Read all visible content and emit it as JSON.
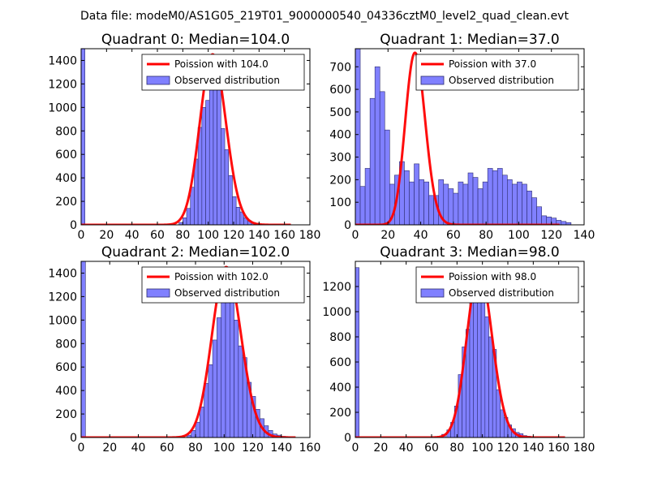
{
  "suptitle": "Data file: modeM0/AS1G05_219T01_9000000540_04336cztM0_level2_quad_clean.evt",
  "colors": {
    "bar_fill": "#8080ff",
    "bar_edge": "#2c2c6e",
    "curve": "#ff0000",
    "axes": "#000000",
    "background": "#ffffff"
  },
  "chart_data": [
    {
      "type": "bar",
      "title": "Quadrant 0: Median=104.0",
      "xlim": [
        0,
        180
      ],
      "ylim": [
        0,
        1500
      ],
      "xticks": [
        0,
        20,
        40,
        60,
        80,
        100,
        120,
        140,
        160,
        180
      ],
      "yticks": [
        0,
        200,
        400,
        600,
        800,
        1000,
        1200,
        1400
      ],
      "legend": {
        "position": "top-right",
        "curve_label": "Poission with 104.0",
        "bars_label": "Observed distribution"
      },
      "bin_width": 3,
      "bins_start": [
        0,
        77,
        80,
        83,
        86,
        89,
        92,
        95,
        98,
        101,
        104,
        107,
        110,
        113,
        116,
        119,
        122,
        125,
        128,
        131,
        134,
        137,
        140
      ],
      "counts": [
        1500,
        20,
        60,
        140,
        320,
        560,
        830,
        1000,
        1060,
        1240,
        1380,
        1150,
        820,
        640,
        420,
        240,
        150,
        110,
        60,
        35,
        20,
        10,
        5
      ],
      "poisson": {
        "mean": 104.0,
        "peak": 1450,
        "x_range": [
          0,
          165
        ]
      }
    },
    {
      "type": "bar",
      "title": "Quadrant 1: Median=37.0",
      "xlim": [
        0,
        140
      ],
      "ylim": [
        0,
        780
      ],
      "xticks": [
        0,
        20,
        40,
        60,
        80,
        100,
        120,
        140
      ],
      "yticks": [
        0,
        100,
        200,
        300,
        400,
        500,
        600,
        700
      ],
      "legend": {
        "position": "top-right",
        "curve_label": "Poission with 37.0",
        "bars_label": "Observed distribution"
      },
      "bin_width": 3,
      "bins_start": [
        0,
        3,
        6,
        9,
        12,
        15,
        18,
        21,
        24,
        27,
        30,
        33,
        36,
        39,
        42,
        45,
        48,
        51,
        54,
        57,
        60,
        63,
        66,
        69,
        72,
        75,
        78,
        81,
        84,
        87,
        90,
        93,
        96,
        99,
        102,
        105,
        108,
        111,
        114,
        117,
        120,
        123,
        126,
        129
      ],
      "counts": [
        780,
        170,
        250,
        560,
        700,
        590,
        420,
        180,
        220,
        280,
        240,
        190,
        270,
        200,
        190,
        130,
        130,
        200,
        180,
        160,
        140,
        190,
        180,
        230,
        210,
        160,
        190,
        250,
        240,
        250,
        220,
        200,
        180,
        190,
        180,
        150,
        120,
        80,
        40,
        35,
        30,
        20,
        15,
        10
      ],
      "poisson": {
        "mean": 37.0,
        "peak": 760,
        "x_range": [
          0,
          125
        ]
      }
    },
    {
      "type": "bar",
      "title": "Quadrant 2: Median=102.0",
      "xlim": [
        0,
        160
      ],
      "ylim": [
        0,
        1500
      ],
      "xticks": [
        0,
        20,
        40,
        60,
        80,
        100,
        120,
        140,
        160
      ],
      "yticks": [
        0,
        200,
        400,
        600,
        800,
        1000,
        1200,
        1400
      ],
      "legend": {
        "position": "top-right",
        "curve_label": "Poission with 102.0",
        "bars_label": "Observed distribution"
      },
      "bin_width": 3,
      "bins_start": [
        0,
        74,
        77,
        80,
        83,
        86,
        89,
        92,
        95,
        98,
        101,
        104,
        107,
        110,
        113,
        116,
        119,
        122,
        125,
        128,
        131,
        134,
        137,
        140,
        143
      ],
      "counts": [
        1500,
        20,
        60,
        130,
        260,
        460,
        620,
        830,
        1020,
        1200,
        1260,
        1290,
        1000,
        780,
        680,
        470,
        350,
        240,
        160,
        100,
        60,
        30,
        20,
        10,
        5
      ],
      "poisson": {
        "mean": 102.0,
        "peak": 1450,
        "x_range": [
          0,
          150
        ]
      }
    },
    {
      "type": "bar",
      "title": "Quadrant 3: Median=98.0",
      "xlim": [
        0,
        180
      ],
      "ylim": [
        0,
        1400
      ],
      "xticks": [
        0,
        20,
        40,
        60,
        80,
        100,
        120,
        140,
        160,
        180
      ],
      "yticks": [
        0,
        200,
        400,
        600,
        800,
        1000,
        1200
      ],
      "legend": {
        "position": "top-right",
        "curve_label": "Poission with 98.0",
        "bars_label": "Observed distribution"
      },
      "bin_width": 3,
      "bins_start": [
        0,
        62,
        68,
        72,
        75,
        78,
        81,
        84,
        87,
        90,
        93,
        96,
        99,
        102,
        105,
        108,
        111,
        114,
        117,
        120,
        123,
        126,
        129,
        132,
        135
      ],
      "counts": [
        1350,
        5,
        25,
        60,
        120,
        250,
        500,
        720,
        860,
        1180,
        1250,
        1350,
        1300,
        960,
        800,
        700,
        380,
        220,
        160,
        100,
        70,
        40,
        30,
        15,
        10
      ],
      "poisson": {
        "mean": 98.0,
        "peak": 1330,
        "x_range": [
          0,
          165
        ]
      }
    }
  ]
}
